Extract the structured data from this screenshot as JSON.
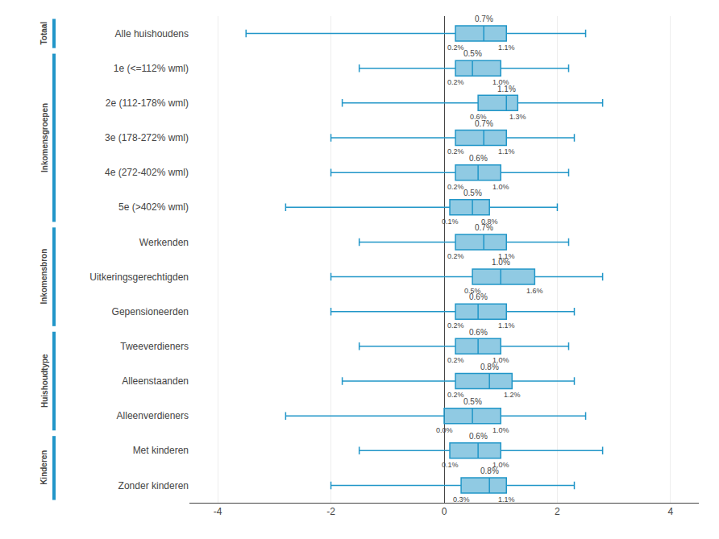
{
  "chart_data": {
    "type": "box",
    "orientation": "horizontal",
    "categories": [
      "Alle huishoudens",
      "1e (<=112% wml)",
      "2e (112-178% wml)",
      "3e (178-272% wml)",
      "4e (272-402% wml)",
      "5e (>402% wml)",
      "Werkenden",
      "Uitkeringsgerechtigden",
      "Gepensioneerden",
      "Tweeverdieners",
      "Alleenstaanden",
      "Alleenverdieners",
      "Met kinderen",
      "Zonder kinderen"
    ],
    "sections": [
      "Totaal",
      "Inkomensgroepen",
      "Inkomensgroepen",
      "Inkomensgroepen",
      "Inkomensgroepen",
      "Inkomensgroepen",
      "Inkomensbron",
      "Inkomensbron",
      "Inkomensbron",
      "Huishoudtype",
      "Huishoudtype",
      "Huishoudtype",
      "Kinderen",
      "Kinderen"
    ],
    "whisker_low": [
      -3.5,
      -1.5,
      -1.8,
      -2.0,
      -2.0,
      -2.8,
      -1.5,
      -2.0,
      -2.0,
      -1.5,
      -1.8,
      -2.8,
      -1.5,
      -2.0
    ],
    "q1": [
      0.2,
      0.2,
      0.6,
      0.2,
      0.2,
      0.1,
      0.2,
      0.5,
      0.2,
      0.2,
      0.2,
      0.0,
      0.1,
      0.3
    ],
    "median": [
      0.7,
      0.5,
      1.1,
      0.7,
      0.6,
      0.5,
      0.7,
      1.0,
      0.6,
      0.6,
      0.8,
      0.5,
      0.6,
      0.8
    ],
    "q3": [
      1.1,
      1.0,
      1.3,
      1.1,
      1.0,
      0.8,
      1.1,
      1.6,
      1.1,
      1.0,
      1.2,
      1.0,
      1.0,
      1.1
    ],
    "whisker_high": [
      2.5,
      2.2,
      2.8,
      2.3,
      2.2,
      2.0,
      2.2,
      2.8,
      2.3,
      2.2,
      2.3,
      2.5,
      2.8,
      2.3
    ],
    "q1_labels": [
      "0.2%",
      "0.2%",
      "0.6%",
      "0.2%",
      "0.2%",
      "0.1%",
      "0.2%",
      "0.5%",
      "0.2%",
      "0.2%",
      "0.2%",
      "0.0%",
      "0.1%",
      "0.3%"
    ],
    "median_labels": [
      "0.7%",
      "0.5%",
      "1.1%",
      "0.7%",
      "0.6%",
      "0.5%",
      "0.7%",
      "1.0%",
      "0.6%",
      "0.6%",
      "0.8%",
      "0.5%",
      "0.6%",
      "0.8%"
    ],
    "q3_labels": [
      "1.1%",
      "1.0%",
      "1.3%",
      "1.1%",
      "1.0%",
      "0.8%",
      "1.1%",
      "1.6%",
      "1.1%",
      "1.0%",
      "1.2%",
      "1.0%",
      "1.0%",
      "1.1%"
    ],
    "color": "#2196c8",
    "xlim": [
      -4.5,
      4.5
    ],
    "xticks": [
      -4,
      -2,
      0,
      2,
      4
    ],
    "grid": true
  }
}
